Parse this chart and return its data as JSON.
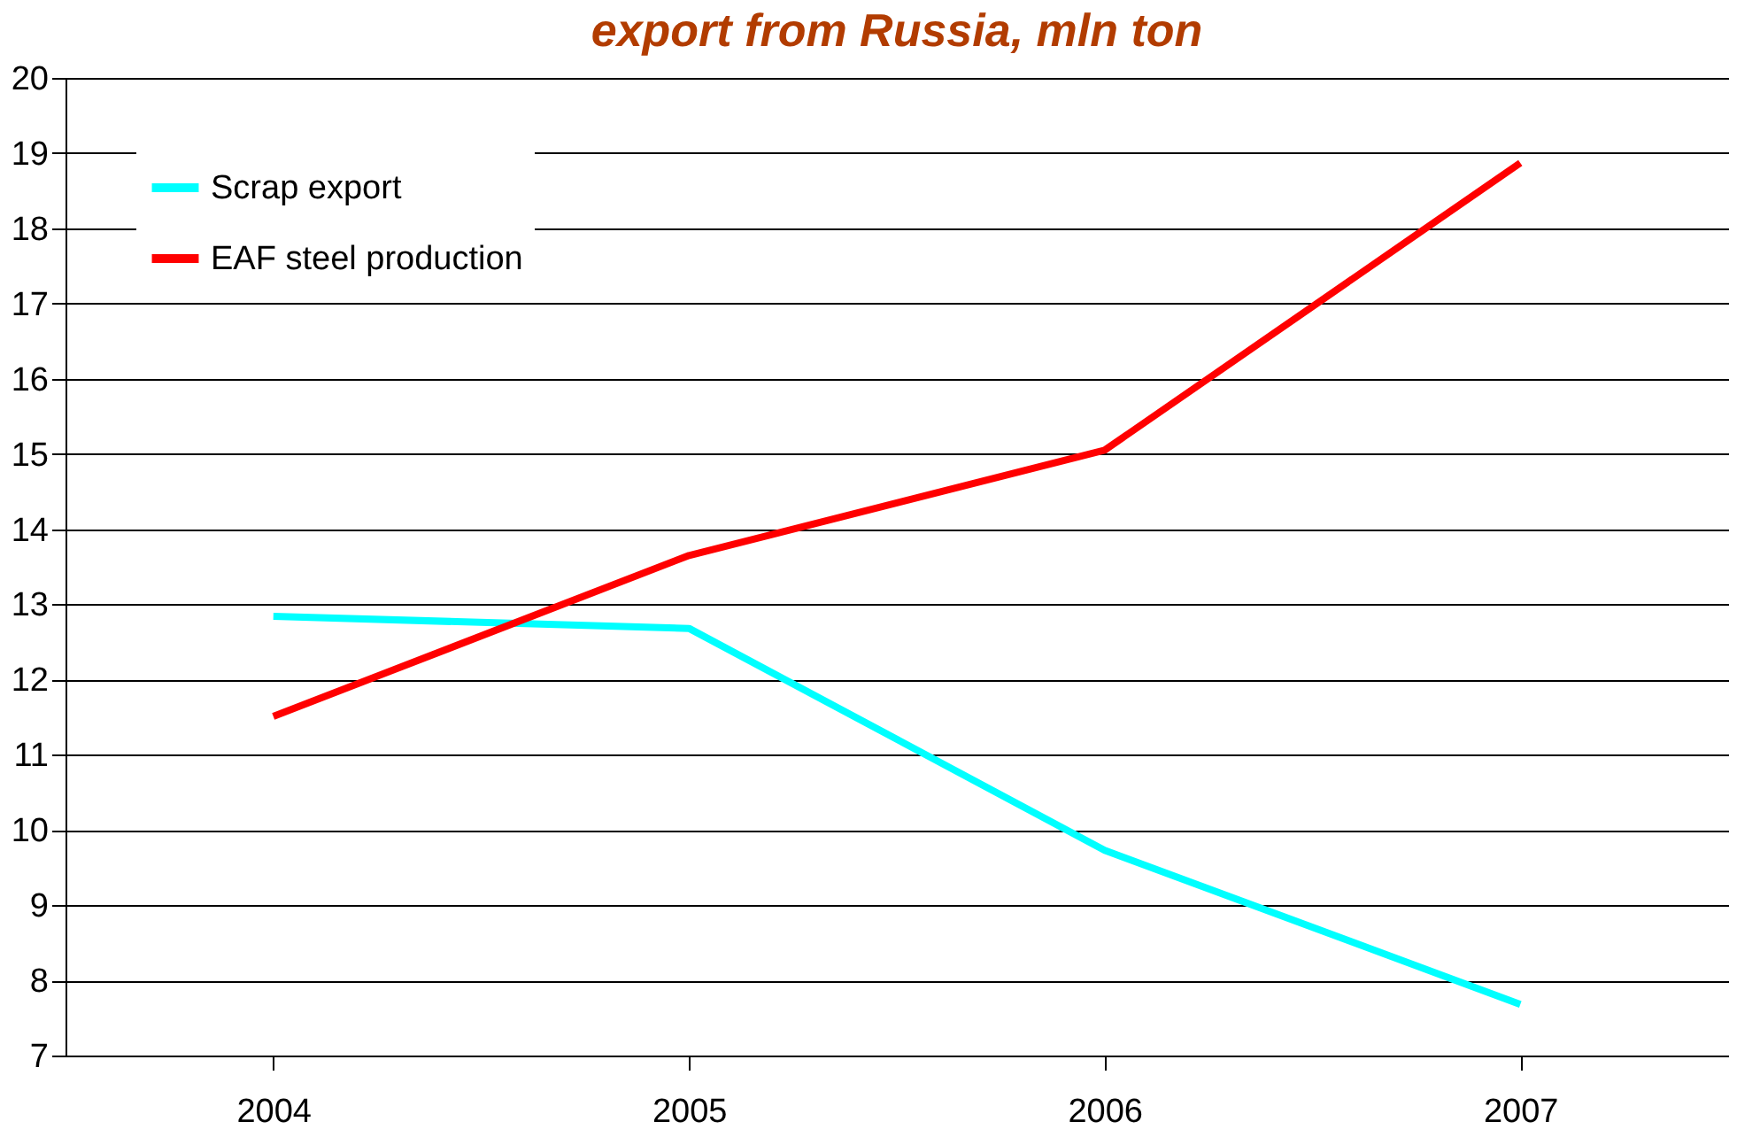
{
  "chart_data": {
    "type": "line",
    "title": "export from Russia, mln ton",
    "categories": [
      "2004",
      "2005",
      "2006",
      "2007"
    ],
    "series": [
      {
        "name": "Scrap export",
        "color": "#00ffff",
        "values": [
          12.84,
          12.68,
          9.73,
          7.68
        ]
      },
      {
        "name": "EAF steel production",
        "color": "#ff0000",
        "values": [
          11.51,
          13.65,
          15.05,
          18.87
        ]
      }
    ],
    "ylim": [
      7,
      20
    ],
    "yticks": [
      7,
      8,
      9,
      10,
      11,
      12,
      13,
      14,
      15,
      16,
      17,
      18,
      19,
      20
    ],
    "grid": "y",
    "legend": "top left",
    "marker": "none",
    "line_style": "solid"
  }
}
